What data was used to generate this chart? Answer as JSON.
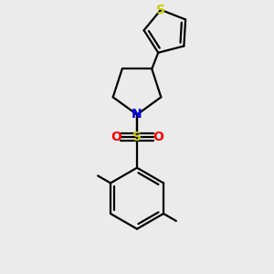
{
  "background_color": "#ebebeb",
  "bond_color": "#000000",
  "n_color": "#0000ff",
  "s_sulfonyl_color": "#cccc00",
  "o_color": "#ff0000",
  "s_thiophene_color": "#cccc00",
  "lw": 1.6,
  "fig_w": 3.0,
  "fig_h": 3.0,
  "dpi": 100,
  "xlim": [
    0,
    10
  ],
  "ylim": [
    0,
    10
  ]
}
